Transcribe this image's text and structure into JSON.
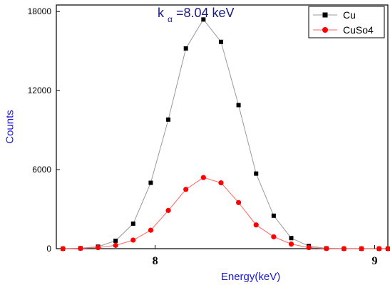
{
  "chart_data": {
    "type": "line",
    "xlabel": "Energy(keV)",
    "ylabel": "Counts",
    "xlim": [
      7.55,
      9.06
    ],
    "ylim": [
      0,
      18500
    ],
    "xticks": [
      8,
      9
    ],
    "yticks": [
      0,
      6000,
      12000,
      18000
    ],
    "grid": false,
    "legend_position": "top-right",
    "annotation": {
      "prefix": "k",
      "subscript": "α",
      "text": " =8.04 keV"
    },
    "series": [
      {
        "name": "Cu",
        "color": "#000000",
        "line_color": "#999999",
        "marker": "square",
        "x": [
          7.58,
          7.66,
          7.74,
          7.82,
          7.9,
          7.98,
          8.06,
          8.14,
          8.22,
          8.3,
          8.38,
          8.46,
          8.54,
          8.62,
          8.7,
          8.78,
          8.86,
          8.94,
          9.02,
          9.06
        ],
        "y": [
          0,
          30,
          150,
          600,
          1900,
          5000,
          9800,
          15200,
          17400,
          15700,
          10900,
          5700,
          2500,
          800,
          200,
          20,
          0,
          0,
          0,
          0
        ]
      },
      {
        "name": "CuSo4",
        "color": "#ff0000",
        "line_color": "#ff6666",
        "marker": "circle",
        "x": [
          7.58,
          7.66,
          7.74,
          7.82,
          7.9,
          7.98,
          8.06,
          8.14,
          8.22,
          8.3,
          8.38,
          8.46,
          8.54,
          8.62,
          8.7,
          8.78,
          8.86,
          8.94,
          9.02,
          9.06
        ],
        "y": [
          0,
          20,
          80,
          250,
          650,
          1400,
          2900,
          4500,
          5400,
          5000,
          3500,
          1800,
          900,
          350,
          80,
          10,
          0,
          0,
          0,
          0
        ]
      }
    ]
  }
}
